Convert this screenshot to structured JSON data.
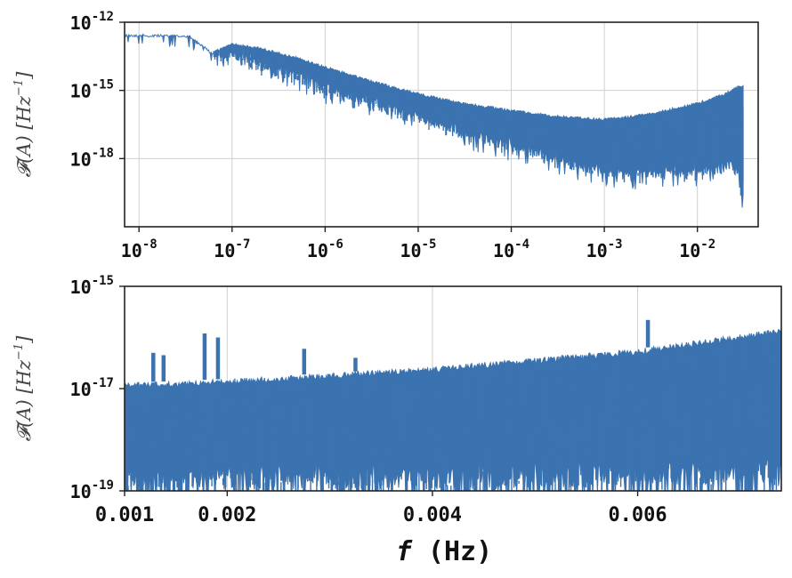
{
  "chart_data": [
    {
      "type": "line",
      "xscale": "log",
      "yscale": "log",
      "xlim": [
        7e-09,
        0.045
      ],
      "ylim": [
        1e-21,
        1e-12
      ],
      "grid": true,
      "color": "#3b73b0",
      "xticks": [
        {
          "label": "10",
          "exp": "-8",
          "value": 1e-08
        },
        {
          "label": "10",
          "exp": "-7",
          "value": 1e-07
        },
        {
          "label": "10",
          "exp": "-6",
          "value": 1e-06
        },
        {
          "label": "10",
          "exp": "-5",
          "value": 1e-05
        },
        {
          "label": "10",
          "exp": "-4",
          "value": 0.0001
        },
        {
          "label": "10",
          "exp": "-3",
          "value": 0.001
        },
        {
          "label": "10",
          "exp": "-2",
          "value": 0.01
        }
      ],
      "yticks": [
        {
          "label": "10",
          "exp": "-12",
          "value": 1e-12
        },
        {
          "label": "10",
          "exp": "-15",
          "value": 1e-15
        },
        {
          "label": "10",
          "exp": "-18",
          "value": 1e-18
        }
      ],
      "ylabel": "𝓕(A)   [Hz",
      "ylabel_exp": "−1",
      "ylabel_close": "]",
      "series": [
        {
          "upper": [
            [
              7e-09,
              3e-13
            ],
            [
              3.5e-08,
              2.8e-13
            ],
            [
              6e-08,
              5e-14
            ],
            [
              1e-07,
              1.2e-13
            ],
            [
              2e-07,
              8e-14
            ],
            [
              5e-07,
              3e-14
            ],
            [
              1e-06,
              1.2e-14
            ],
            [
              3e-06,
              3e-15
            ],
            [
              1e-05,
              8e-16
            ],
            [
              3e-05,
              3e-16
            ],
            [
              0.0001,
              1.5e-16
            ],
            [
              0.0003,
              8e-17
            ],
            [
              0.001,
              6e-17
            ],
            [
              0.003,
              1e-16
            ],
            [
              0.01,
              3e-16
            ],
            [
              0.02,
              8e-16
            ],
            [
              0.026,
              1.5e-15
            ],
            [
              0.031,
              1.8e-15
            ]
          ],
          "lower": [
            [
              7e-09,
              3e-13
            ],
            [
              3.5e-08,
              2.8e-13
            ],
            [
              6e-08,
              5e-14
            ],
            [
              1e-07,
              4e-14
            ],
            [
              2e-07,
              1e-14
            ],
            [
              5e-07,
              4e-15
            ],
            [
              1e-06,
              1e-15
            ],
            [
              3e-06,
              2e-16
            ],
            [
              1e-05,
              5e-17
            ],
            [
              3e-05,
              1e-17
            ],
            [
              0.0001,
              3e-18
            ],
            [
              0.0003,
              6e-19
            ],
            [
              0.001,
              2e-19
            ],
            [
              0.003,
              1.5e-19
            ],
            [
              0.01,
              2e-19
            ],
            [
              0.02,
              3e-19
            ],
            [
              0.026,
              4e-19
            ],
            [
              0.03,
              1.5e-20
            ],
            [
              0.032,
              3e-20
            ]
          ]
        }
      ]
    },
    {
      "type": "line",
      "xscale": "linear",
      "yscale": "log",
      "xlim": [
        0.001,
        0.0074
      ],
      "ylim": [
        1e-19,
        1e-15
      ],
      "grid": true,
      "color": "#3b73b0",
      "xticks": [
        {
          "label": "0.001",
          "value": 0.001
        },
        {
          "label": "0.002",
          "value": 0.002
        },
        {
          "label": "0.004",
          "value": 0.004
        },
        {
          "label": "0.006",
          "value": 0.006
        }
      ],
      "yticks": [
        {
          "label": "10",
          "exp": "-15",
          "value": 1e-15
        },
        {
          "label": "10",
          "exp": "-17",
          "value": 1e-17
        },
        {
          "label": "10",
          "exp": "-19",
          "value": 1e-19
        }
      ],
      "xlabel": "f (Hz)",
      "xlabel_f": "f",
      "xlabel_unit": " (Hz)",
      "ylabel": "𝓕(A)   [Hz",
      "ylabel_exp": "−1",
      "ylabel_close": "]",
      "series": [
        {
          "upper": [
            [
              0.001,
              1.3e-17
            ],
            [
              0.0015,
              1.4e-17
            ],
            [
              0.002,
              1.55e-17
            ],
            [
              0.003,
              2e-17
            ],
            [
              0.004,
              2.7e-17
            ],
            [
              0.005,
              4e-17
            ],
            [
              0.006,
              6e-17
            ],
            [
              0.0074,
              1.5e-16
            ]
          ],
          "lower": [
            [
              0.001,
              1.1e-19
            ],
            [
              0.002,
              1.1e-19
            ],
            [
              0.004,
              1.1e-19
            ],
            [
              0.006,
              1.2e-19
            ],
            [
              0.0074,
              1.5e-19
            ]
          ],
          "spikes": [
            [
              0.00128,
              5e-17
            ],
            [
              0.00138,
              4.5e-17
            ],
            [
              0.00178,
              1.2e-16
            ],
            [
              0.00191,
              1e-16
            ],
            [
              0.00275,
              6e-17
            ],
            [
              0.00325,
              4e-17
            ],
            [
              0.0061,
              2.2e-16
            ]
          ]
        }
      ]
    }
  ]
}
